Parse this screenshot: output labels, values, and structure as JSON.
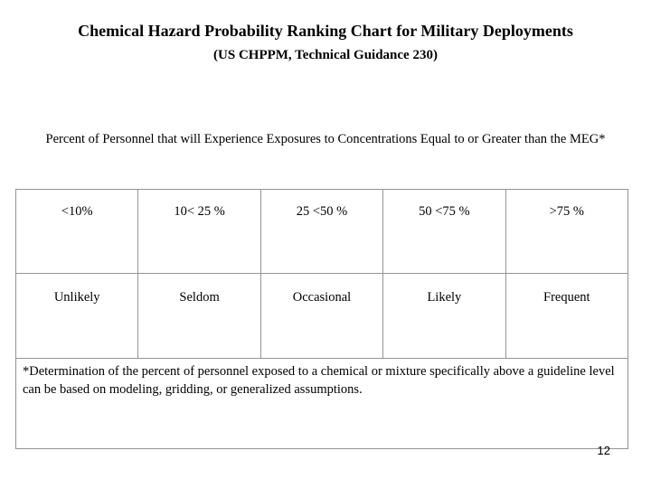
{
  "slide": {
    "title": "Chemical Hazard Probability Ranking Chart for Military Deployments",
    "subtitle": "(US CHPPM, Technical Guidance 230)",
    "intro_text": "Percent of Personnel that will Experience Exposures to Concentrations Equal to or Greater than the MEG*",
    "page_number": "12"
  },
  "table": {
    "percent_ranges": [
      "<10%",
      "10< 25 %",
      "25 <50 %",
      "50 <75 %",
      ">75 %"
    ],
    "likelihoods": [
      "Unlikely",
      "Seldom",
      "Occasional",
      "Likely",
      "Frequent"
    ],
    "footnote": "*Determination of the percent of personnel exposed to a chemical or mixture specifically above a guideline level can be based on modeling, gridding, or generalized assumptions."
  },
  "colors": {
    "background": "#ffffff",
    "text": "#000000",
    "table_border": "#949494"
  }
}
